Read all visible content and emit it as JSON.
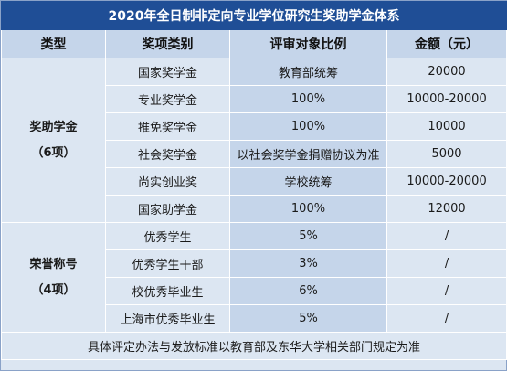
{
  "title": "2020年全日制非定向专业学位研究生奖助学金体系",
  "headers": [
    "类型",
    "奖项类别",
    "评审对象比例",
    "金额（元）"
  ],
  "groups": [
    {
      "name": "奖助学金",
      "count": "（6项）",
      "rows": [
        {
          "item": "国家奖学金",
          "ratio": "教育部统筹",
          "amount": "20000"
        },
        {
          "item": "专业奖学金",
          "ratio": "100%",
          "amount": "10000-20000"
        },
        {
          "item": "推免奖学金",
          "ratio": "100%",
          "amount": "10000"
        },
        {
          "item": "社会奖学金",
          "ratio": "以社会奖学金捐赠协议为准",
          "amount": "5000"
        },
        {
          "item": "尚实创业奖",
          "ratio": "学校统筹",
          "amount": "10000-20000"
        },
        {
          "item": "国家助学金",
          "ratio": "100%",
          "amount": "12000"
        }
      ]
    },
    {
      "name": "荣誉称号",
      "count": "（4项）",
      "rows": [
        {
          "item": "优秀学生",
          "ratio": "5%",
          "amount": "/"
        },
        {
          "item": "优秀学生干部",
          "ratio": "3%",
          "amount": "/"
        },
        {
          "item": "校优秀毕业生",
          "ratio": "6%",
          "amount": "/"
        },
        {
          "item": "上海市优秀毕业生",
          "ratio": "5%",
          "amount": "/"
        }
      ]
    }
  ],
  "footer": "具体评定办法与发放标准以教育部及东华大学相关部门规定为准",
  "colors": {
    "title_bg": "#1f4e96",
    "header_bg": "#c5d5ea",
    "cell_bg": "#dce6f2"
  }
}
